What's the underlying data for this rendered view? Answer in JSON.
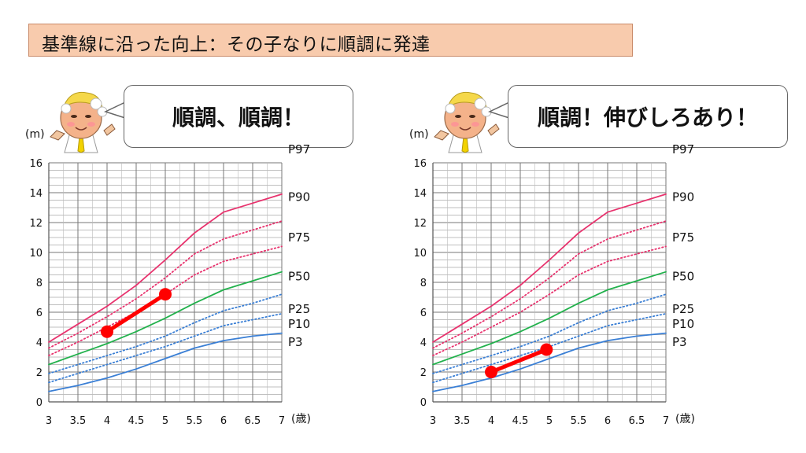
{
  "title": "基準線に沿った向上：その子なりに順調に発達",
  "bubbles": {
    "left": "順調、順調！",
    "right": "順調！伸びしろあり！"
  },
  "colors": {
    "title_bg": "#f8cbad",
    "P97": "#e8336e",
    "P90": "#e8336e",
    "P75": "#e8336e",
    "P50": "#22b14c",
    "P25": "#3a7fd5",
    "P10": "#3a7fd5",
    "P3": "#3a7fd5",
    "highlight": "#ff0000"
  },
  "chart_data": [
    {
      "type": "line",
      "y_unit_label": "(m)",
      "x_unit_label": "(歳)",
      "xlim": [
        3,
        7
      ],
      "ylim": [
        0,
        16
      ],
      "x_ticks": [
        "3",
        "3.5",
        "4",
        "4.5",
        "5",
        "5.5",
        "6",
        "6.5",
        "7"
      ],
      "y_ticks": [
        "0",
        "2",
        "4",
        "6",
        "8",
        "10",
        "12",
        "14",
        "16"
      ],
      "grid": true,
      "x": [
        3,
        3.5,
        4,
        4.5,
        5,
        5.5,
        6,
        6.5,
        7
      ],
      "series": [
        {
          "name": "P97",
          "style": "solid",
          "values": [
            4.0,
            5.2,
            6.4,
            7.8,
            9.5,
            11.3,
            12.7,
            13.3,
            13.9
          ]
        },
        {
          "name": "P90",
          "style": "dotted",
          "values": [
            3.6,
            4.6,
            5.7,
            6.9,
            8.3,
            9.9,
            10.9,
            11.5,
            12.1
          ]
        },
        {
          "name": "P75",
          "style": "dotted",
          "values": [
            3.1,
            4.0,
            5.0,
            6.0,
            7.2,
            8.5,
            9.4,
            9.9,
            10.4
          ]
        },
        {
          "name": "P50",
          "style": "solid",
          "values": [
            2.5,
            3.2,
            3.9,
            4.7,
            5.6,
            6.6,
            7.5,
            8.1,
            8.7
          ]
        },
        {
          "name": "P25",
          "style": "dotted",
          "values": [
            1.9,
            2.5,
            3.1,
            3.7,
            4.4,
            5.3,
            6.1,
            6.6,
            7.2
          ]
        },
        {
          "name": "P10",
          "style": "dotted",
          "values": [
            1.3,
            1.9,
            2.5,
            3.1,
            3.7,
            4.4,
            5.1,
            5.5,
            5.9
          ]
        },
        {
          "name": "P3",
          "style": "solid",
          "values": [
            0.7,
            1.1,
            1.6,
            2.2,
            2.9,
            3.6,
            4.1,
            4.4,
            4.6
          ]
        }
      ],
      "highlight": {
        "x": [
          4,
          5
        ],
        "y": [
          4.7,
          7.2
        ]
      }
    },
    {
      "type": "line",
      "y_unit_label": "(m)",
      "x_unit_label": "(歳)",
      "xlim": [
        3,
        7
      ],
      "ylim": [
        0,
        16
      ],
      "x_ticks": [
        "3",
        "3.5",
        "4",
        "4.5",
        "5",
        "5.5",
        "6",
        "6.5",
        "7"
      ],
      "y_ticks": [
        "0",
        "2",
        "4",
        "6",
        "8",
        "10",
        "12",
        "14",
        "16"
      ],
      "grid": true,
      "x": [
        3,
        3.5,
        4,
        4.5,
        5,
        5.5,
        6,
        6.5,
        7
      ],
      "series": [
        {
          "name": "P97",
          "style": "solid",
          "values": [
            4.0,
            5.2,
            6.4,
            7.8,
            9.5,
            11.3,
            12.7,
            13.3,
            13.9
          ]
        },
        {
          "name": "P90",
          "style": "dotted",
          "values": [
            3.6,
            4.6,
            5.7,
            6.9,
            8.3,
            9.9,
            10.9,
            11.5,
            12.1
          ]
        },
        {
          "name": "P75",
          "style": "dotted",
          "values": [
            3.1,
            4.0,
            5.0,
            6.0,
            7.2,
            8.5,
            9.4,
            9.9,
            10.4
          ]
        },
        {
          "name": "P50",
          "style": "solid",
          "values": [
            2.5,
            3.2,
            3.9,
            4.7,
            5.6,
            6.6,
            7.5,
            8.1,
            8.7
          ]
        },
        {
          "name": "P25",
          "style": "dotted",
          "values": [
            1.9,
            2.5,
            3.1,
            3.7,
            4.4,
            5.3,
            6.1,
            6.6,
            7.2
          ]
        },
        {
          "name": "P10",
          "style": "dotted",
          "values": [
            1.3,
            1.9,
            2.5,
            3.1,
            3.7,
            4.4,
            5.1,
            5.5,
            5.9
          ]
        },
        {
          "name": "P3",
          "style": "solid",
          "values": [
            0.7,
            1.1,
            1.6,
            2.2,
            2.9,
            3.6,
            4.1,
            4.4,
            4.6
          ]
        }
      ],
      "highlight": {
        "x": [
          4,
          4.95
        ],
        "y": [
          2.0,
          3.5
        ]
      }
    }
  ]
}
